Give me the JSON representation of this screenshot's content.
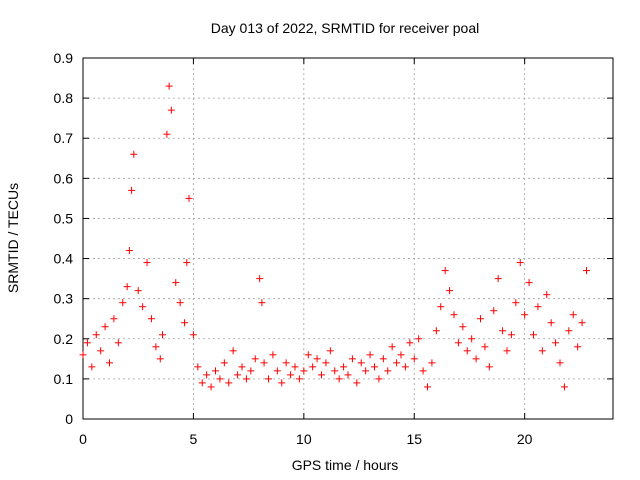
{
  "chart_data": {
    "type": "scatter",
    "title": "Day 013 of 2022, SRMTID for receiver poal",
    "xlabel": "GPS time / hours",
    "ylabel": "SRMTID / TECUs",
    "xlim": [
      0,
      24
    ],
    "ylim": [
      0,
      0.9
    ],
    "x_ticks": [
      0,
      5,
      10,
      15,
      20
    ],
    "x_tick_labels": [
      "0",
      "5",
      "10",
      "15",
      "20"
    ],
    "y_ticks": [
      0,
      0.1,
      0.2,
      0.3,
      0.4,
      0.5,
      0.6,
      0.7,
      0.8,
      0.9
    ],
    "y_tick_labels": [
      "0",
      "0.1",
      "0.2",
      "0.3",
      "0.4",
      "0.5",
      "0.6",
      "0.7",
      "0.8",
      "0.9"
    ],
    "grid": true,
    "marker": "+",
    "marker_color": "#ff0000",
    "series": [
      {
        "name": "SRMTID",
        "x": [
          0.0,
          0.2,
          0.4,
          0.6,
          0.8,
          1.0,
          1.2,
          1.4,
          1.6,
          1.8,
          2.0,
          2.1,
          2.2,
          2.3,
          2.5,
          2.7,
          2.9,
          3.1,
          3.3,
          3.5,
          3.6,
          3.8,
          3.9,
          4.0,
          4.2,
          4.4,
          4.6,
          4.7,
          4.8,
          5.0,
          5.2,
          5.4,
          5.6,
          5.8,
          6.0,
          6.2,
          6.4,
          6.6,
          6.8,
          7.0,
          7.2,
          7.4,
          7.6,
          7.8,
          8.0,
          8.1,
          8.2,
          8.4,
          8.6,
          8.8,
          9.0,
          9.2,
          9.4,
          9.6,
          9.8,
          10.0,
          10.2,
          10.4,
          10.6,
          10.8,
          11.0,
          11.2,
          11.4,
          11.6,
          11.8,
          12.0,
          12.2,
          12.4,
          12.6,
          12.8,
          13.0,
          13.2,
          13.4,
          13.6,
          13.8,
          14.0,
          14.2,
          14.4,
          14.6,
          14.8,
          15.0,
          15.2,
          15.4,
          15.6,
          15.8,
          16.0,
          16.2,
          16.4,
          16.6,
          16.8,
          17.0,
          17.2,
          17.4,
          17.6,
          17.8,
          18.0,
          18.2,
          18.4,
          18.6,
          18.8,
          19.0,
          19.2,
          19.4,
          19.6,
          19.8,
          20.0,
          20.2,
          20.4,
          20.6,
          20.8,
          21.0,
          21.2,
          21.4,
          21.6,
          21.8,
          22.0,
          22.2,
          22.4,
          22.6,
          22.8
        ],
        "y": [
          0.16,
          0.19,
          0.13,
          0.21,
          0.17,
          0.23,
          0.14,
          0.25,
          0.19,
          0.29,
          0.33,
          0.42,
          0.57,
          0.66,
          0.32,
          0.28,
          0.39,
          0.25,
          0.18,
          0.15,
          0.21,
          0.71,
          0.83,
          0.77,
          0.34,
          0.29,
          0.24,
          0.39,
          0.55,
          0.21,
          0.13,
          0.09,
          0.11,
          0.08,
          0.12,
          0.1,
          0.14,
          0.09,
          0.17,
          0.11,
          0.13,
          0.1,
          0.12,
          0.15,
          0.35,
          0.29,
          0.14,
          0.1,
          0.16,
          0.12,
          0.09,
          0.14,
          0.11,
          0.13,
          0.1,
          0.12,
          0.16,
          0.13,
          0.15,
          0.11,
          0.14,
          0.17,
          0.12,
          0.1,
          0.13,
          0.11,
          0.15,
          0.09,
          0.14,
          0.12,
          0.16,
          0.13,
          0.1,
          0.15,
          0.12,
          0.18,
          0.14,
          0.16,
          0.13,
          0.19,
          0.15,
          0.2,
          0.12,
          0.08,
          0.14,
          0.22,
          0.28,
          0.37,
          0.32,
          0.26,
          0.19,
          0.23,
          0.17,
          0.2,
          0.15,
          0.25,
          0.18,
          0.13,
          0.27,
          0.35,
          0.22,
          0.17,
          0.21,
          0.29,
          0.39,
          0.26,
          0.34,
          0.21,
          0.28,
          0.17,
          0.31,
          0.24,
          0.19,
          0.14,
          0.08,
          0.22,
          0.26,
          0.18,
          0.24,
          0.37
        ]
      }
    ],
    "annotations": []
  }
}
